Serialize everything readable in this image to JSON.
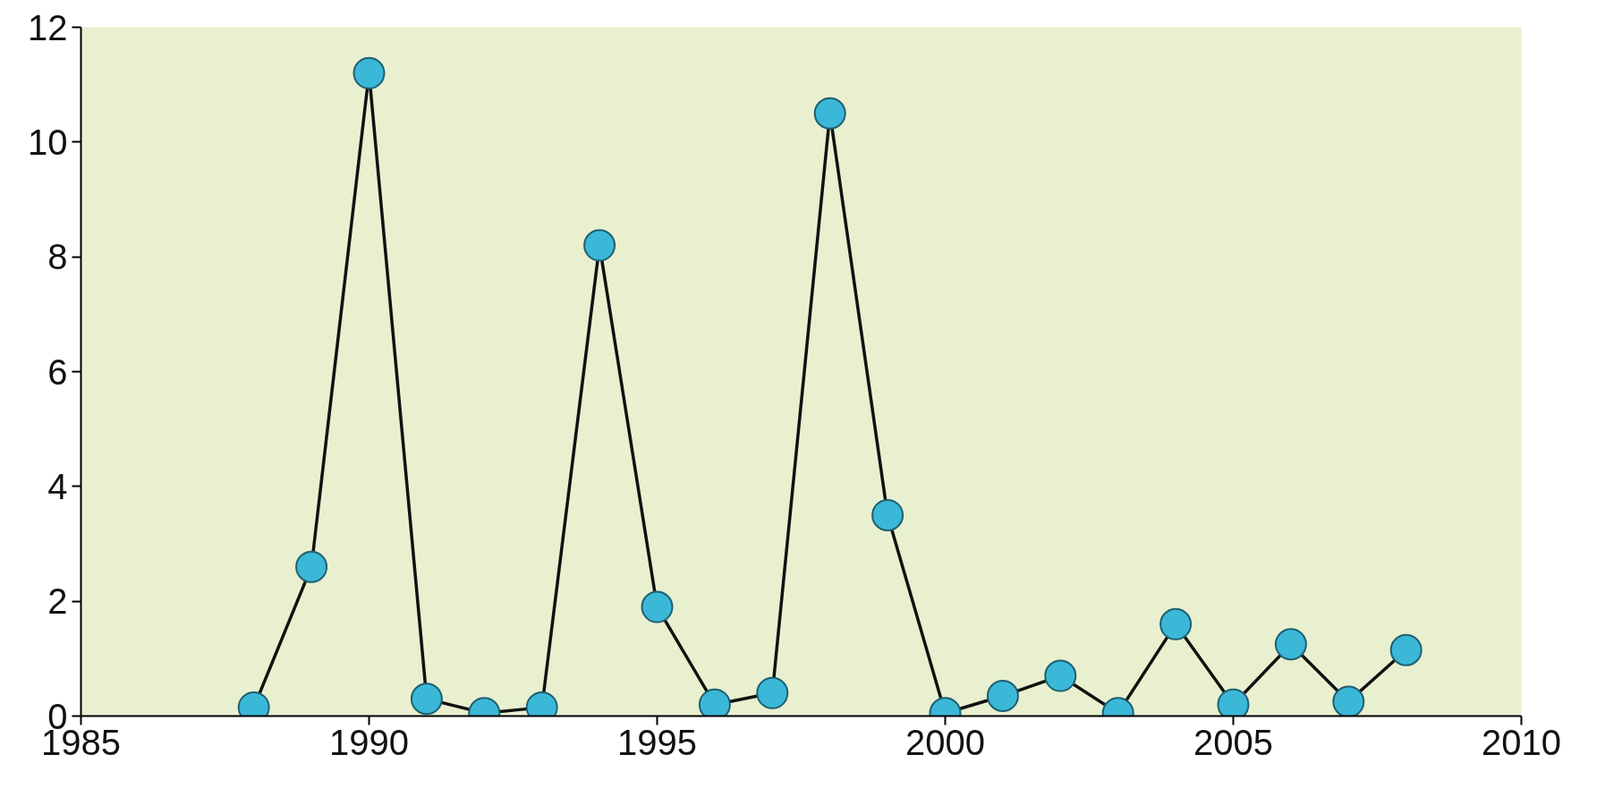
{
  "chart_data": {
    "type": "line",
    "x": [
      1988,
      1989,
      1990,
      1991,
      1992,
      1993,
      1994,
      1995,
      1996,
      1997,
      1998,
      1999,
      2000,
      2001,
      2002,
      2003,
      2004,
      2005,
      2006,
      2007,
      2008
    ],
    "series": [
      {
        "color": "#3bb8d8",
        "values": [
          0.15,
          2.6,
          11.2,
          0.3,
          0.05,
          0.15,
          8.2,
          1.9,
          0.2,
          0.4,
          10.5,
          3.5,
          0.05,
          0.35,
          0.7,
          0.05,
          1.6,
          0.2,
          1.25,
          0.25,
          1.15
        ]
      }
    ],
    "xlim": [
      1985,
      2010
    ],
    "xticks": [
      1985,
      1990,
      1995,
      2000,
      2005,
      2010
    ],
    "ylim": [
      0,
      12
    ],
    "yticks": [
      0,
      2,
      4,
      6,
      8,
      10,
      12
    ],
    "grid": false,
    "marker": "circle",
    "line_style": "solid"
  }
}
